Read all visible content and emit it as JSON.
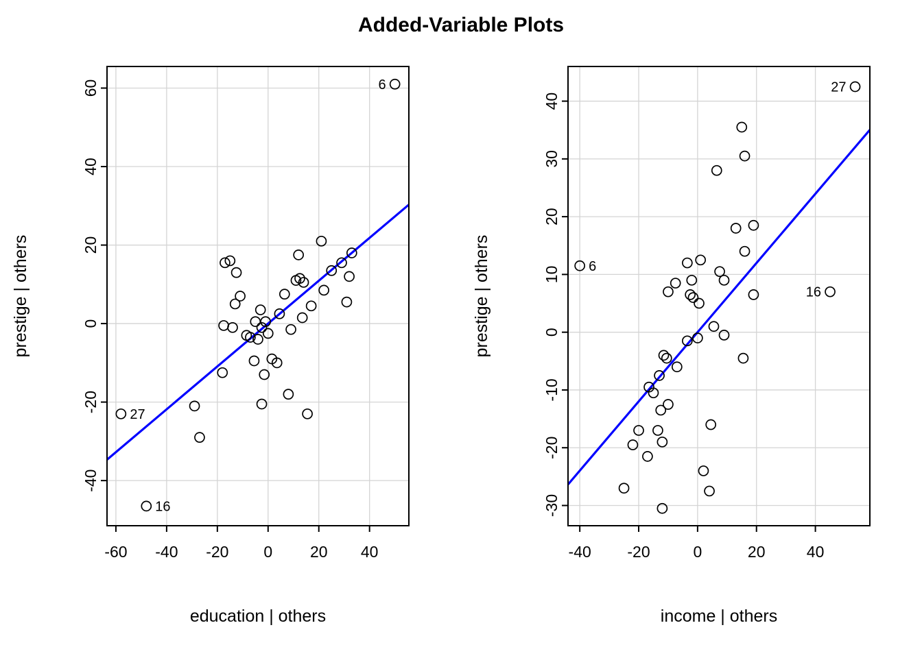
{
  "title": "Added-Variable Plots",
  "colors": {
    "line": "#0000FF",
    "grid": "#D4D4D4",
    "axis": "#000000",
    "background": "#FFFFFF"
  },
  "chart_data": [
    {
      "type": "scatter",
      "title": "",
      "xlabel": "education | others",
      "ylabel": "prestige  | others",
      "xticks": [
        -60,
        -40,
        -20,
        0,
        20,
        40
      ],
      "yticks": [
        -40,
        -20,
        0,
        20,
        40,
        60
      ],
      "xlim": [
        -63.5,
        55.5
      ],
      "ylim": [
        -51.5,
        65.5
      ],
      "grid": true,
      "regression_line": {
        "slope": 0.546,
        "intercept": 0
      },
      "points": [
        [
          -29,
          -21
        ],
        [
          -27,
          -29
        ],
        [
          -18,
          -12.5
        ],
        [
          -17.5,
          -0.5
        ],
        [
          -17,
          15.5
        ],
        [
          -15,
          16
        ],
        [
          -14,
          -1
        ],
        [
          -13,
          5
        ],
        [
          -12.5,
          13
        ],
        [
          -11,
          7
        ],
        [
          -8.5,
          -3
        ],
        [
          -7,
          -3.5
        ],
        [
          -5.5,
          -9.5
        ],
        [
          -5,
          0.5
        ],
        [
          -4,
          -4
        ],
        [
          -3,
          3.5
        ],
        [
          -2.5,
          -1
        ],
        [
          -2.5,
          -20.5
        ],
        [
          -1.5,
          -13
        ],
        [
          -1,
          0.5
        ],
        [
          0,
          -2.5
        ],
        [
          1.5,
          -9
        ],
        [
          3.5,
          -10
        ],
        [
          4.5,
          2.5
        ],
        [
          6.5,
          7.5
        ],
        [
          8,
          -18
        ],
        [
          9,
          -1.5
        ],
        [
          11,
          11
        ],
        [
          12,
          17.5
        ],
        [
          12.5,
          11.5
        ],
        [
          13.5,
          1.5
        ],
        [
          14,
          10.5
        ],
        [
          15.5,
          -23
        ],
        [
          17,
          4.5
        ],
        [
          21,
          21
        ],
        [
          22,
          8.5
        ],
        [
          25,
          13.5
        ],
        [
          29,
          15.5
        ],
        [
          31,
          5.5
        ],
        [
          32,
          12
        ],
        [
          33,
          18
        ]
      ],
      "labeled_points": [
        {
          "label": "6",
          "x": 50,
          "y": 61,
          "label_side": "left"
        },
        {
          "label": "27",
          "x": -58,
          "y": -23,
          "label_side": "right"
        },
        {
          "label": "16",
          "x": -48,
          "y": -46.5,
          "label_side": "right"
        }
      ]
    },
    {
      "type": "scatter",
      "title": "",
      "xlabel": "income | others",
      "ylabel": "prestige  | others",
      "xticks": [
        -40,
        -20,
        0,
        20,
        40
      ],
      "yticks": [
        -30,
        -20,
        -10,
        0,
        10,
        20,
        30,
        40
      ],
      "xlim": [
        -44,
        58.5
      ],
      "ylim": [
        -33.5,
        46
      ],
      "grid": true,
      "regression_line": {
        "slope": 0.599,
        "intercept": 0
      },
      "points": [
        [
          15,
          35.5
        ],
        [
          16,
          30.5
        ],
        [
          6.5,
          28
        ],
        [
          13,
          18
        ],
        [
          19,
          18.5
        ],
        [
          16,
          14
        ],
        [
          -3.5,
          12
        ],
        [
          1,
          12.5
        ],
        [
          -7.5,
          8.5
        ],
        [
          -2,
          9
        ],
        [
          7.5,
          10.5
        ],
        [
          9,
          9
        ],
        [
          -10,
          7
        ],
        [
          -2.5,
          6.5
        ],
        [
          -1.5,
          6
        ],
        [
          0.5,
          5
        ],
        [
          19,
          6.5
        ],
        [
          5.5,
          1
        ],
        [
          9,
          -0.5
        ],
        [
          0,
          -1
        ],
        [
          -3.5,
          -1.5
        ],
        [
          15.5,
          -4.5
        ],
        [
          -11.5,
          -4
        ],
        [
          -10.5,
          -4.5
        ],
        [
          -7,
          -6
        ],
        [
          -13,
          -7.5
        ],
        [
          -16.5,
          -9.5
        ],
        [
          -15,
          -10.5
        ],
        [
          -10,
          -12.5
        ],
        [
          -12.5,
          -13.5
        ],
        [
          4.5,
          -16
        ],
        [
          -20,
          -17
        ],
        [
          -13.5,
          -17
        ],
        [
          -12,
          -19
        ],
        [
          -22,
          -19.5
        ],
        [
          -17,
          -21.5
        ],
        [
          2,
          -24
        ],
        [
          -25,
          -27
        ],
        [
          4,
          -27.5
        ],
        [
          -12,
          -30.5
        ]
      ],
      "labeled_points": [
        {
          "label": "27",
          "x": 53.5,
          "y": 42.5,
          "label_side": "left"
        },
        {
          "label": "6",
          "x": -40,
          "y": 11.5,
          "label_side": "right"
        },
        {
          "label": "16",
          "x": 45,
          "y": 7,
          "label_side": "left"
        }
      ]
    }
  ]
}
